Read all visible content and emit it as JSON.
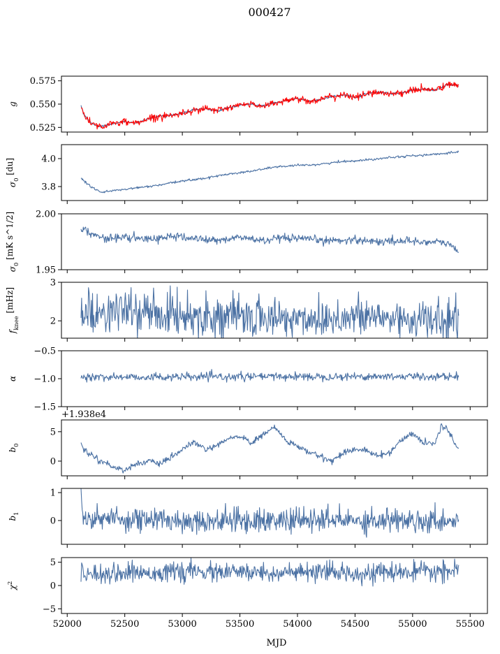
{
  "figure": {
    "title": "000427",
    "xlabel": "MJD"
  },
  "colors": {
    "series": "#4c72a4",
    "overlay": "#ff0000",
    "frame": "#000000"
  },
  "chart_data": [
    {
      "type": "line",
      "ylabel": "g",
      "xlim": [
        51950,
        55650
      ],
      "ylim": [
        0.52,
        0.58
      ],
      "yticks": [
        "0.525",
        "0.550",
        "0.575"
      ],
      "ytick_values": [
        0.525,
        0.55,
        0.575
      ],
      "show_xticklabels": false,
      "series": [
        {
          "color": "#4c72a4",
          "noise": 0.0006,
          "x": [
            52120,
            52140,
            52200,
            52260,
            52300,
            52400,
            52500,
            52600,
            52700,
            52800,
            52900,
            53000,
            53100,
            53200,
            53300,
            53400,
            53500,
            53600,
            53700,
            53800,
            53900,
            54000,
            54100,
            54200,
            54300,
            54400,
            54500,
            54600,
            54700,
            54800,
            54900,
            55000,
            55100,
            55200,
            55300,
            55400
          ],
          "y": [
            0.548,
            0.54,
            0.53,
            0.527,
            0.526,
            0.529,
            0.531,
            0.53,
            0.534,
            0.537,
            0.538,
            0.54,
            0.544,
            0.545,
            0.543,
            0.546,
            0.549,
            0.55,
            0.548,
            0.551,
            0.554,
            0.556,
            0.553,
            0.555,
            0.558,
            0.56,
            0.557,
            0.561,
            0.563,
            0.561,
            0.562,
            0.565,
            0.566,
            0.565,
            0.571,
            0.57
          ]
        },
        {
          "color": "#ff0000",
          "noise": 0.0018,
          "x": [
            52120,
            52140,
            52200,
            52260,
            52300,
            52400,
            52500,
            52600,
            52700,
            52800,
            52900,
            53000,
            53100,
            53200,
            53300,
            53400,
            53500,
            53600,
            53700,
            53800,
            53900,
            54000,
            54100,
            54200,
            54300,
            54400,
            54500,
            54600,
            54700,
            54800,
            54900,
            55000,
            55100,
            55200,
            55300,
            55400
          ],
          "y": [
            0.548,
            0.54,
            0.53,
            0.527,
            0.526,
            0.529,
            0.531,
            0.53,
            0.534,
            0.537,
            0.538,
            0.54,
            0.544,
            0.545,
            0.543,
            0.546,
            0.549,
            0.55,
            0.548,
            0.551,
            0.554,
            0.556,
            0.553,
            0.555,
            0.558,
            0.56,
            0.557,
            0.561,
            0.563,
            0.561,
            0.562,
            0.565,
            0.566,
            0.565,
            0.571,
            0.57
          ]
        }
      ]
    },
    {
      "type": "line",
      "ylabel": "σ0 [du]",
      "xlim": [
        51950,
        55650
      ],
      "ylim": [
        3.7,
        4.1
      ],
      "yticks": [
        "3.8",
        "4.0"
      ],
      "ytick_values": [
        3.8,
        4.0
      ],
      "show_xticklabels": false,
      "series": [
        {
          "color": "#4c72a4",
          "noise": 0.004,
          "x": [
            52120,
            52200,
            52300,
            52400,
            52600,
            52800,
            53000,
            53200,
            53400,
            53600,
            53800,
            54000,
            54200,
            54400,
            54600,
            54800,
            55000,
            55200,
            55400
          ],
          "y": [
            3.86,
            3.8,
            3.76,
            3.77,
            3.79,
            3.81,
            3.84,
            3.86,
            3.89,
            3.91,
            3.94,
            3.95,
            3.96,
            3.98,
            3.99,
            4.01,
            4.02,
            4.03,
            4.05
          ]
        }
      ]
    },
    {
      "type": "line",
      "ylabel": "σ0 [mK s^1/2]",
      "xlim": [
        51950,
        55650
      ],
      "ylim": [
        1.95,
        2.0
      ],
      "yticks": [
        "1.95",
        "2.00"
      ],
      "ytick_values": [
        1.95,
        2.0
      ],
      "show_xticklabels": false,
      "series": [
        {
          "color": "#4c72a4",
          "noise": 0.0018,
          "x": [
            52120,
            52200,
            52300,
            52500,
            52700,
            52900,
            53100,
            53300,
            53500,
            53700,
            53900,
            54100,
            54300,
            54500,
            54700,
            54900,
            55100,
            55300,
            55400
          ],
          "y": [
            1.988,
            1.983,
            1.978,
            1.979,
            1.977,
            1.98,
            1.978,
            1.976,
            1.979,
            1.976,
            1.978,
            1.977,
            1.976,
            1.977,
            1.975,
            1.976,
            1.975,
            1.974,
            1.966
          ]
        }
      ]
    },
    {
      "type": "line",
      "ylabel": "fknee [mHz]",
      "xlim": [
        51950,
        55650
      ],
      "ylim": [
        1.55,
        3.0
      ],
      "yticks": [
        "2",
        "3"
      ],
      "ytick_values": [
        2,
        3
      ],
      "show_xticklabels": false,
      "series": [
        {
          "color": "#4c72a4",
          "noise": 0.26,
          "x": [
            52120,
            52500,
            53000,
            53500,
            54000,
            54500,
            55000,
            55400
          ],
          "y": [
            2.2,
            2.25,
            2.15,
            2.1,
            2.05,
            2.1,
            2.05,
            1.95
          ]
        }
      ]
    },
    {
      "type": "line",
      "ylabel": "α",
      "xlim": [
        51950,
        55650
      ],
      "ylim": [
        -1.5,
        -0.5
      ],
      "yticks": [
        "−1.5",
        "−1.0",
        "−0.5"
      ],
      "ytick_values": [
        -1.5,
        -1.0,
        -0.5
      ],
      "show_xticklabels": false,
      "series": [
        {
          "color": "#4c72a4",
          "noise": 0.035,
          "x": [
            52120,
            53000,
            54000,
            55000,
            55400
          ],
          "y": [
            -0.97,
            -0.97,
            -0.96,
            -0.96,
            -0.96
          ]
        }
      ]
    },
    {
      "type": "line",
      "ylabel": "b0",
      "offset_text": "+1.938e4",
      "xlim": [
        51950,
        55650
      ],
      "ylim": [
        -2.5,
        7.0
      ],
      "yticks": [
        "0",
        "5"
      ],
      "ytick_values": [
        0,
        5
      ],
      "show_xticklabels": false,
      "series": [
        {
          "color": "#4c72a4",
          "noise": 0.25,
          "x": [
            52120,
            52140,
            52200,
            52300,
            52400,
            52500,
            52600,
            52700,
            52800,
            52900,
            53000,
            53100,
            53200,
            53300,
            53400,
            53500,
            53600,
            53700,
            53800,
            53900,
            54000,
            54100,
            54200,
            54300,
            54400,
            54500,
            54600,
            54700,
            54800,
            54900,
            55000,
            55100,
            55200,
            55250,
            55300,
            55350,
            55400
          ],
          "y": [
            3.0,
            2.0,
            1.2,
            0.0,
            -1.0,
            -1.5,
            -0.5,
            0.0,
            -0.5,
            0.5,
            2.0,
            3.2,
            2.0,
            2.5,
            3.8,
            4.3,
            3.0,
            4.5,
            5.8,
            3.5,
            2.5,
            1.5,
            0.8,
            0.0,
            1.5,
            2.0,
            1.8,
            0.8,
            1.5,
            3.5,
            4.8,
            3.0,
            3.2,
            6.0,
            5.5,
            3.8,
            1.8
          ]
        }
      ]
    },
    {
      "type": "line",
      "ylabel": "b1",
      "xlim": [
        51950,
        55650
      ],
      "ylim": [
        -0.85,
        1.15
      ],
      "yticks": [
        "0",
        "1"
      ],
      "ytick_values": [
        0,
        1
      ],
      "show_xticklabels": false,
      "series": [
        {
          "color": "#4c72a4",
          "noise": 0.22,
          "x": [
            52120,
            52130,
            52150,
            53000,
            54000,
            55000,
            55400
          ],
          "y": [
            1.05,
            0.3,
            0.1,
            0.0,
            0.0,
            0.02,
            0.0
          ]
        }
      ]
    },
    {
      "type": "line",
      "ylabel": "χ2",
      "xlim": [
        51950,
        55650
      ],
      "ylim": [
        -6,
        6
      ],
      "yticks": [
        "−5",
        "0",
        "5"
      ],
      "ytick_values": [
        -5,
        0,
        5
      ],
      "show_xticklabels": true,
      "xticks": [
        "52000",
        "52500",
        "53000",
        "53500",
        "54000",
        "54500",
        "55000",
        "55500"
      ],
      "xtick_values": [
        52000,
        52500,
        53000,
        53500,
        54000,
        54500,
        55000,
        55500
      ],
      "series": [
        {
          "color": "#4c72a4",
          "noise": 1.0,
          "x": [
            52120,
            53000,
            54000,
            55000,
            55400
          ],
          "y": [
            2.6,
            2.9,
            2.7,
            2.8,
            3.2
          ]
        }
      ]
    }
  ]
}
